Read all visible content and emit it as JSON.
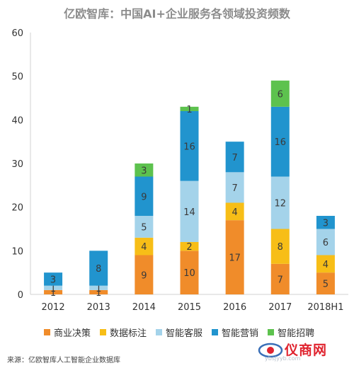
{
  "title": "亿欧智库：中国AI+企业服务各领域投资频数",
  "source": "来源：亿欧智库人工智能企业数据库",
  "watermark": {
    "brand": "仪商网",
    "url": "ybsjyyb.com"
  },
  "colors": {
    "商业决策": "#F08C2A",
    "数据标注": "#F7BE17",
    "智能客服": "#A4D3EA",
    "智能营销": "#2194CE",
    "智能招聘": "#5DC24E"
  },
  "chart_data": {
    "type": "bar",
    "stacked": true,
    "title": "亿欧智库：中国AI+企业服务各领域投资频数",
    "xlabel": "",
    "ylabel": "",
    "ylim": [
      0,
      60
    ],
    "yticks": [
      0,
      10,
      20,
      30,
      40,
      50,
      60
    ],
    "grid": false,
    "legend": "bottom",
    "categories": [
      "2012",
      "2013",
      "2014",
      "2015",
      "2016",
      "2017",
      "2018H1"
    ],
    "series": [
      {
        "name": "商业决策",
        "values": [
          1,
          1,
          9,
          10,
          17,
          7,
          5
        ],
        "labels": [
          "1",
          "1",
          "9",
          "10",
          "17",
          "7",
          "5"
        ]
      },
      {
        "name": "数据标注",
        "values": [
          0,
          0,
          4,
          2,
          4,
          8,
          4
        ],
        "labels": [
          "",
          "",
          "4",
          "2",
          "4",
          "8",
          "4"
        ]
      },
      {
        "name": "智能客服",
        "values": [
          1,
          1,
          5,
          14,
          7,
          12,
          6
        ],
        "labels": [
          "1",
          "1",
          "5",
          "14",
          "7",
          "12",
          "6"
        ]
      },
      {
        "name": "智能营销",
        "values": [
          3,
          8,
          9,
          16,
          7,
          16,
          3
        ],
        "labels": [
          "3",
          "8",
          "9",
          "16",
          "7",
          "16",
          "3"
        ]
      },
      {
        "name": "智能招聘",
        "values": [
          0,
          0,
          3,
          1,
          0,
          6,
          0
        ],
        "labels": [
          "",
          "",
          "3",
          "1",
          "",
          "6",
          ""
        ]
      }
    ]
  }
}
